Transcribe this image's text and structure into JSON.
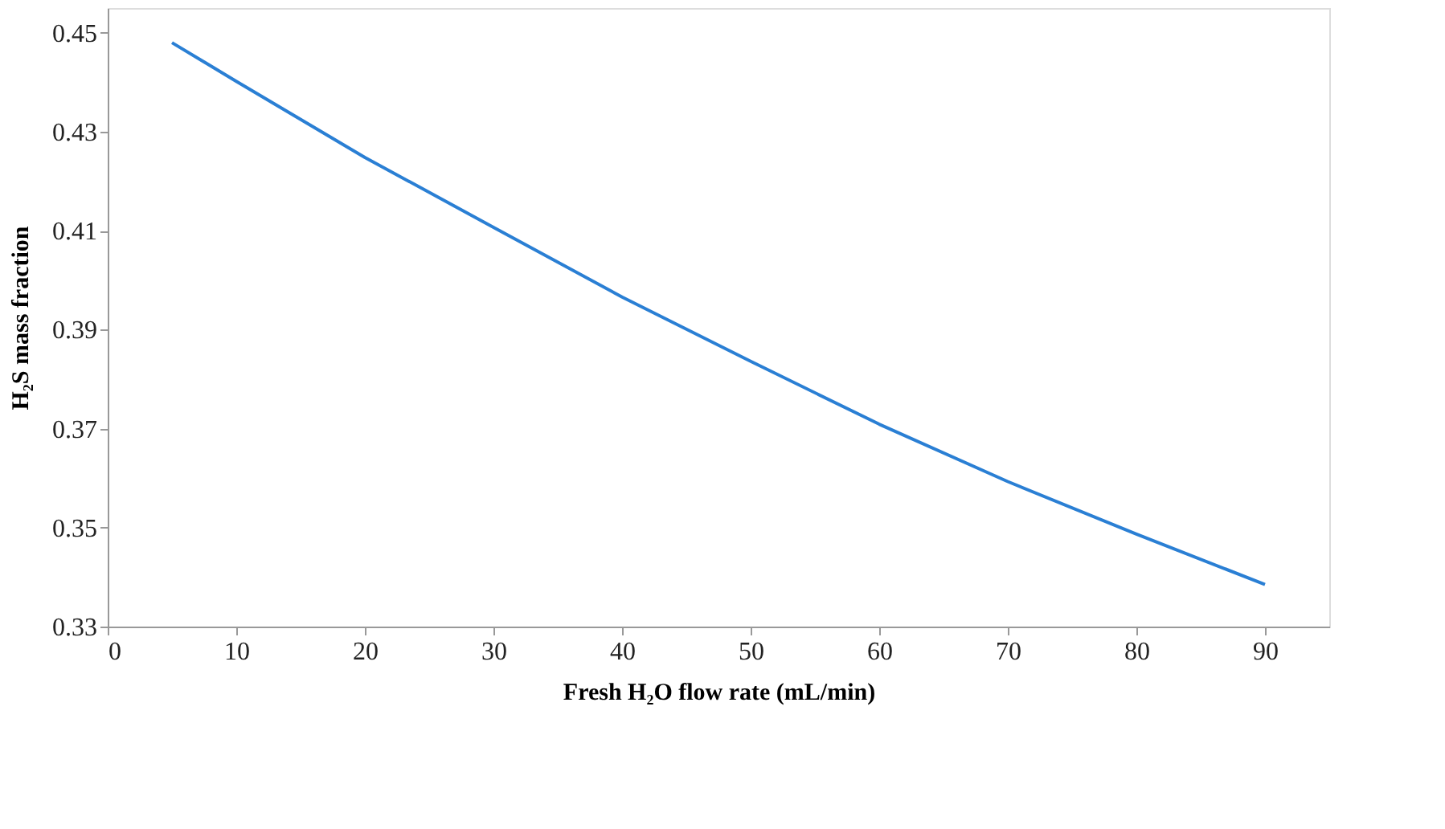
{
  "chart_data": {
    "type": "line",
    "xlabel": "Fresh H₂O flow rate  (mL/min)",
    "ylabel": "H₂S mass fraction",
    "x": [
      5,
      10,
      20,
      30,
      40,
      50,
      60,
      70,
      80,
      90
    ],
    "series": [
      {
        "color": "#2a7fd4",
        "values": [
          0.448,
          0.4402,
          0.4248,
          0.4107,
          0.3966,
          0.3836,
          0.3709,
          0.3593,
          0.3487,
          0.3385
        ]
      }
    ],
    "xlim": [
      0,
      95
    ],
    "xticks": [
      0,
      10,
      20,
      30,
      40,
      50,
      60,
      70,
      80,
      90
    ],
    "ylim": [
      0.33,
      0.455
    ],
    "yticks": [
      0.33,
      0.35,
      0.37,
      0.39,
      0.41,
      0.43,
      0.45
    ],
    "grid": false,
    "legend": false,
    "marker": "none",
    "line_style": "solid"
  }
}
